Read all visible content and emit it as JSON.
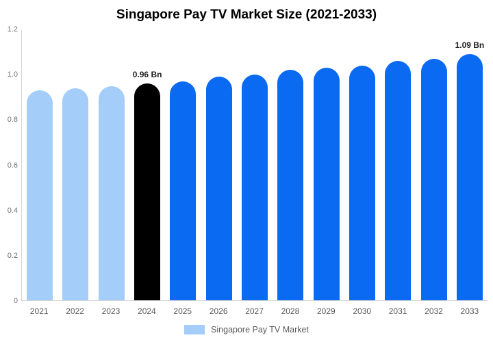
{
  "title": "Singapore Pay TV Market Size (2021-2033)",
  "chart_data": {
    "type": "bar",
    "categories": [
      "2021",
      "2022",
      "2023",
      "2024",
      "2025",
      "2026",
      "2027",
      "2028",
      "2029",
      "2030",
      "2031",
      "2032",
      "2033"
    ],
    "values": [
      0.93,
      0.94,
      0.95,
      0.96,
      0.97,
      0.99,
      1.0,
      1.02,
      1.03,
      1.04,
      1.06,
      1.07,
      1.09
    ],
    "bar_colors": [
      "#a4cdf9",
      "#a4cdf9",
      "#a4cdf9",
      "#000000",
      "#0a6bf2",
      "#0a6bf2",
      "#0a6bf2",
      "#0a6bf2",
      "#0a6bf2",
      "#0a6bf2",
      "#0a6bf2",
      "#0a6bf2",
      "#0a6bf2"
    ],
    "annotations": [
      {
        "category": "2024",
        "text": "0.96 Bn"
      },
      {
        "category": "2033",
        "text": "1.09 Bn"
      }
    ],
    "ylim": [
      0,
      1.2
    ],
    "yticks": [
      {
        "label": "1.2",
        "value": 1.2
      },
      {
        "label": "1.0",
        "value": 1.0
      },
      {
        "label": "0.8",
        "value": 0.8
      },
      {
        "label": "0.6",
        "value": 0.6
      },
      {
        "label": "0.4",
        "value": 0.4
      },
      {
        "label": "0.2",
        "value": 0.2
      },
      {
        "label": "0",
        "value": 0.0
      }
    ],
    "grid": "off",
    "legend": {
      "label": "Singapore Pay TV Market",
      "swatch_color": "#a4cdf9",
      "position": "bottom-center"
    },
    "colors": {
      "historical": "#a4cdf9",
      "base_year": "#000000",
      "forecast": "#0a6bf2",
      "axis_line": "#d6d6d6"
    }
  }
}
